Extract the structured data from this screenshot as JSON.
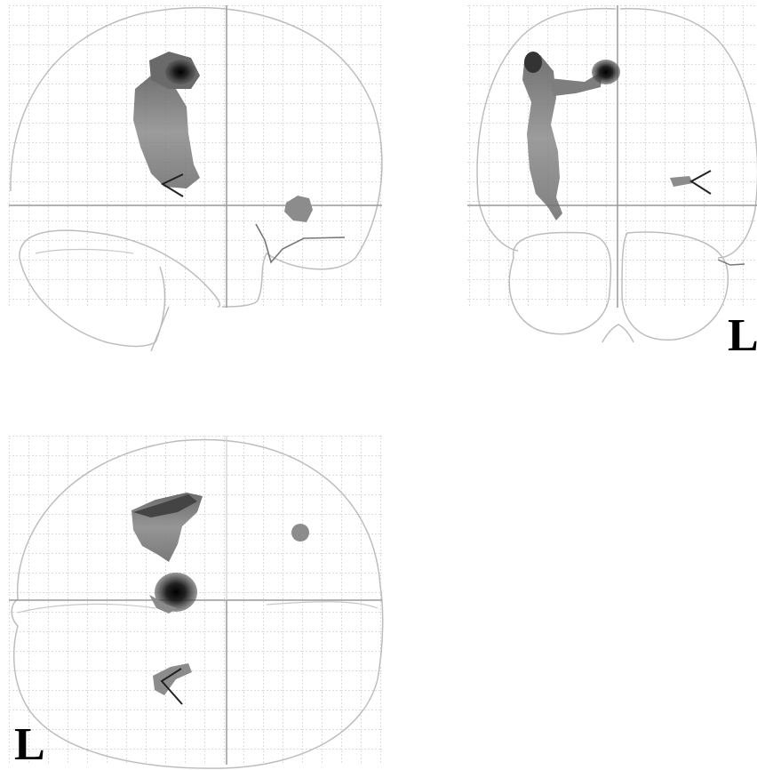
{
  "figure": {
    "views": [
      "sagittal",
      "coronal",
      "axial"
    ],
    "orientation_labels": {
      "coronal": "L",
      "axial": "L"
    },
    "colors": {
      "background": "#ffffff",
      "grid": "#b8b8b8",
      "outline": "#bdbdbd",
      "crosshair": "#999999",
      "blob_dark": "#111111",
      "blob_mid": "#6e6e6e",
      "blob_light": "#9a9a9a",
      "cursor": "#222222"
    }
  }
}
